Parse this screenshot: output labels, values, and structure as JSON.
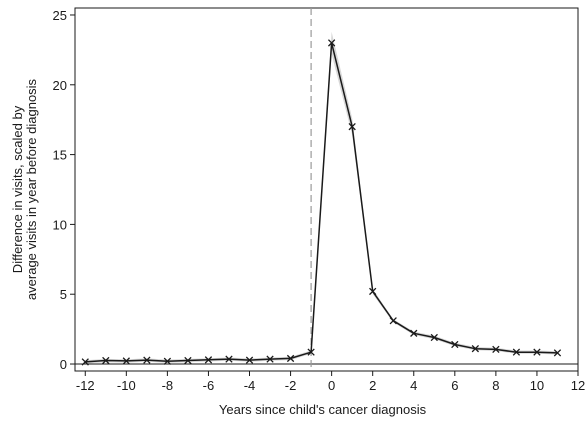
{
  "chart_data": {
    "type": "line",
    "title": "",
    "xlabel": "Years since child's cancer diagnosis",
    "ylabel_lines": [
      "Difference in visits, scaled by",
      "average visits in year before diagnosis"
    ],
    "xlim": [
      -12,
      12
    ],
    "ylim": [
      0,
      25
    ],
    "x_ticks": [
      -12,
      -10,
      -8,
      -6,
      -4,
      -2,
      0,
      2,
      4,
      6,
      8,
      10,
      12
    ],
    "x_tick_labels": [
      "-12",
      "-10",
      "-8",
      "-6",
      "-4",
      "-2",
      "0",
      "2",
      "4",
      "6",
      "8",
      "10",
      "12"
    ],
    "y_ticks": [
      0,
      5,
      10,
      15,
      20,
      25
    ],
    "y_tick_labels": [
      "0",
      "5",
      "10",
      "15",
      "20",
      "25"
    ],
    "grid": false,
    "legend": "none",
    "reference_line_x": -1,
    "reference_line_y": 0,
    "marker": "x",
    "line_color": "#1a1a1a",
    "band_color": "#c8c8c8",
    "reference_color": "#999999",
    "series": [
      {
        "x": [
          -12,
          -11,
          -10,
          -9,
          -8,
          -7,
          -6,
          -5,
          -4,
          -3,
          -2,
          -1,
          0,
          1,
          2,
          3,
          4,
          5,
          6,
          7,
          8,
          9,
          10,
          11
        ],
        "values": [
          0.15,
          0.25,
          0.22,
          0.28,
          0.2,
          0.25,
          0.3,
          0.35,
          0.28,
          0.35,
          0.4,
          0.85,
          23.0,
          17.0,
          5.2,
          3.1,
          2.2,
          1.9,
          1.4,
          1.1,
          1.05,
          0.85,
          0.85,
          0.8
        ]
      }
    ]
  }
}
